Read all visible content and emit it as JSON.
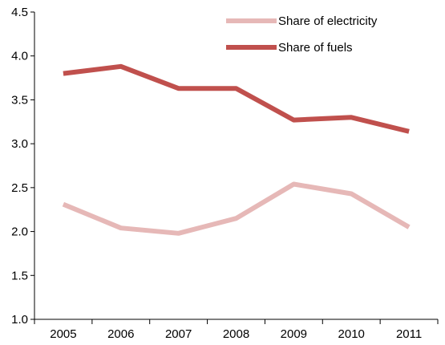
{
  "chart_data": {
    "type": "line",
    "title": "",
    "xlabel": "",
    "ylabel": "",
    "categories": [
      "2005",
      "2006",
      "2007",
      "2008",
      "2009",
      "2010",
      "2011"
    ],
    "ylim": [
      1.0,
      4.5
    ],
    "yticks": [
      "1.0",
      "1.5",
      "2.0",
      "2.5",
      "3.0",
      "3.5",
      "4.0",
      "4.5"
    ],
    "grid": false,
    "legend_position": "top-right",
    "series": [
      {
        "name": "Share of electricity",
        "color": "#e6b8b7",
        "values": [
          2.31,
          2.04,
          1.98,
          2.15,
          2.54,
          2.43,
          2.05
        ]
      },
      {
        "name": "Share of fuels",
        "color": "#c0504d",
        "values": [
          3.8,
          3.88,
          3.63,
          3.63,
          3.27,
          3.3,
          3.14
        ]
      }
    ]
  }
}
